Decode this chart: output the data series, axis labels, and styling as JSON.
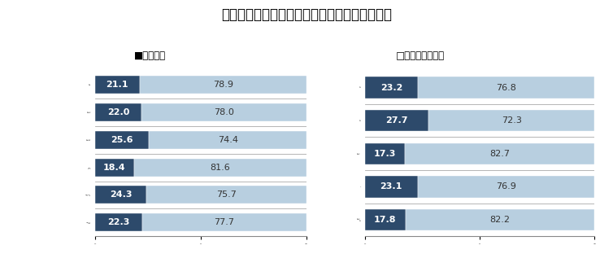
{
  "title": "採用選考の終了状況（従業員規模別／業界別）",
  "legend_dark": "■終了した",
  "legend_light": "□終了していない",
  "left_categories": [
    "全　体",
    "（前年全体）",
    "（前々年全体）",
    "～299人",
    "300～999人",
    "1000人以上"
  ],
  "left_dark": [
    21.1,
    22.0,
    25.6,
    18.4,
    24.3,
    22.3
  ],
  "left_light": [
    78.9,
    78.0,
    74.4,
    81.6,
    75.7,
    77.7
  ],
  "right_categories": [
    "製造",
    "金融",
    "商社・流通",
    "IT",
    "サービス業\nなど"
  ],
  "right_dark": [
    23.2,
    27.7,
    17.3,
    23.1,
    17.8
  ],
  "right_light": [
    76.8,
    72.3,
    82.7,
    76.9,
    82.2
  ],
  "color_dark": "#2d4a6b",
  "color_light": "#b8cfe0",
  "bg_color": "#ffffff",
  "title_fontsize": 12,
  "label_fontsize": 8,
  "tick_fontsize": 8,
  "legend_fontsize": 8.5,
  "bar_edgecolor": "#aaaaaa",
  "separator_color": "#888888"
}
